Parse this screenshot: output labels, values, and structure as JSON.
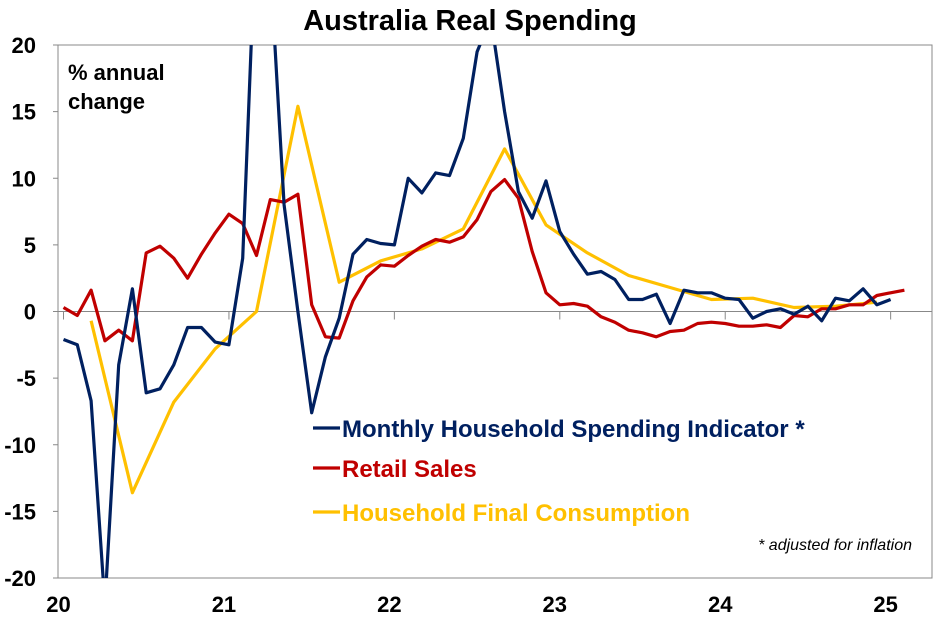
{
  "chart_data": {
    "type": "line",
    "title": "Australia Real Spending",
    "ylabel_lines": [
      "% annual",
      "change"
    ],
    "xlabel": "",
    "ylim": [
      -20,
      20
    ],
    "yticks": [
      20,
      15,
      10,
      5,
      0,
      -5,
      -10,
      -15,
      -20
    ],
    "ytick_labels": [
      "20",
      "15",
      "10",
      "5",
      "0",
      "-5",
      "-10",
      "-15",
      "-20"
    ],
    "x_unit": "months since Jan 2020",
    "xlim": [
      -0.4,
      63
    ],
    "xticks": [
      0,
      12,
      24,
      36,
      48,
      60
    ],
    "xtick_labels": [
      "20",
      "21",
      "22",
      "23",
      "24",
      "25"
    ],
    "grid": false,
    "legend_placement": "bottom-center",
    "footnote": "* adjusted for inflation",
    "series": [
      {
        "name": "Monthly Household Spending Indicator *",
        "color": "#002060",
        "x_start": 0,
        "x_step": 1,
        "values": [
          -2.1,
          -2.5,
          -6.7,
          -22,
          -4,
          1.7,
          -6.1,
          -5.8,
          -4,
          -1.2,
          -1.2,
          -2.3,
          -2.5,
          4,
          30,
          26,
          8,
          0,
          -7.6,
          -3.4,
          -0.5,
          4.3,
          5.4,
          5.1,
          5.0,
          10,
          8.9,
          10.4,
          10.2,
          13,
          19.5,
          22,
          15,
          9,
          7,
          9.8,
          6,
          4.3,
          2.8,
          3,
          2.4,
          0.9,
          0.9,
          1.3,
          -0.9,
          1.6,
          1.4,
          1.4,
          1.0,
          0.9,
          -0.5,
          0,
          0.2,
          -0.2,
          0.4,
          -0.7,
          1.0,
          0.8,
          1.7,
          0.5,
          0.9
        ]
      },
      {
        "name": "Retail Sales",
        "color": "#C00000",
        "x_start": 0,
        "x_step": 1,
        "values": [
          0.3,
          -0.3,
          1.6,
          -2.2,
          -1.4,
          -2.2,
          4.4,
          4.9,
          4.0,
          2.5,
          4.3,
          5.9,
          7.3,
          6.6,
          4.2,
          8.4,
          8.2,
          8.8,
          0.5,
          -1.9,
          -2.0,
          0.8,
          2.6,
          3.5,
          3.4,
          4.2,
          4.9,
          5.4,
          5.2,
          5.6,
          6.9,
          9.0,
          9.9,
          8.5,
          4.5,
          1.4,
          0.5,
          0.6,
          0.4,
          -0.4,
          -0.8,
          -1.4,
          -1.6,
          -1.9,
          -1.5,
          -1.4,
          -0.9,
          -0.8,
          -0.9,
          -1.1,
          -1.1,
          -1.0,
          -1.2,
          -0.3,
          -0.4,
          0.2,
          0.2,
          0.5,
          0.5,
          1.2,
          1.4,
          1.6
        ]
      },
      {
        "name": "Household Final Consumption",
        "color": "#FFC000",
        "x_start": 2,
        "x_step": 3,
        "values": [
          -0.7,
          -13.6,
          -6.8,
          -2.8,
          0,
          15.4,
          2.2,
          3.8,
          4.7,
          6.2,
          12.2,
          6.5,
          4.4,
          2.7,
          1.8,
          0.9,
          1.0,
          0.3,
          0.4,
          0.7
        ]
      }
    ]
  }
}
